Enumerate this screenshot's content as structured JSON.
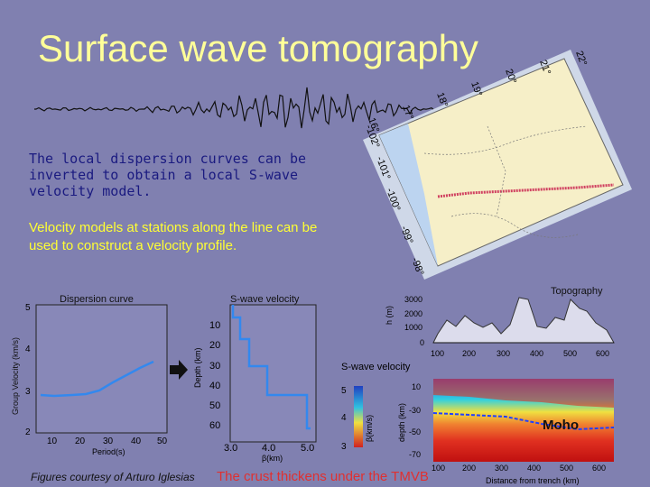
{
  "slide": {
    "title": "Surface wave tomography",
    "paragraph_1": "The local dispersion curves can be inverted to obtain a local S-wave velocity model.",
    "paragraph_2": "Velocity models at stations along the line can be used to construct a velocity profile.",
    "credit": "Figures courtesy of Arturo Iglesias",
    "conclusion": "The crust thickens under the TMVB"
  },
  "map": {
    "lat_labels": [
      "22°",
      "21°",
      "20°",
      "19°",
      "18°",
      "17°",
      "16°"
    ],
    "lon_labels": [
      "-102°",
      "-101°",
      "-100°",
      "-99°",
      "-98°"
    ]
  },
  "dispersion_panel": {
    "title": "Dispersion curve",
    "ylabel": "Group Velocity (km/s)",
    "xlabel": "Period(s)",
    "yticks": [
      "5",
      "4",
      "3",
      "2"
    ],
    "xticks": [
      "10",
      "20",
      "30",
      "40",
      "50"
    ]
  },
  "swave_panel": {
    "title": "S-wave velocity",
    "ylabel": "Depth (km)",
    "xlabel": "β(km)",
    "yticks": [
      "10",
      "20",
      "30",
      "40",
      "50",
      "60"
    ],
    "xticks": [
      "3.0",
      "4.0",
      "5.0"
    ]
  },
  "topography_panel": {
    "title": "Topography",
    "ylabel": "h (m)",
    "yticks": [
      "3000",
      "2000",
      "1000",
      "0"
    ],
    "xticks": [
      "100",
      "200",
      "300",
      "400",
      "500",
      "600"
    ]
  },
  "section_panel": {
    "legend_title": "S-wave velocity",
    "legend_ticks": [
      "5",
      "4",
      "3"
    ],
    "legend_unit": "β(km/s)",
    "ylabel": "depth (km)",
    "yticks": [
      "10",
      "-30",
      "-50",
      "-70"
    ],
    "xticks": [
      "100",
      "200",
      "300",
      "400",
      "500",
      "600"
    ],
    "xlabel": "Distance from trench (km)",
    "moho_label": "Moho"
  },
  "colors": {
    "background": "#8080b0",
    "title": "#ffff99",
    "curve": "#3388ee",
    "moho": "#ffff00",
    "conclusion": "#e03030"
  }
}
